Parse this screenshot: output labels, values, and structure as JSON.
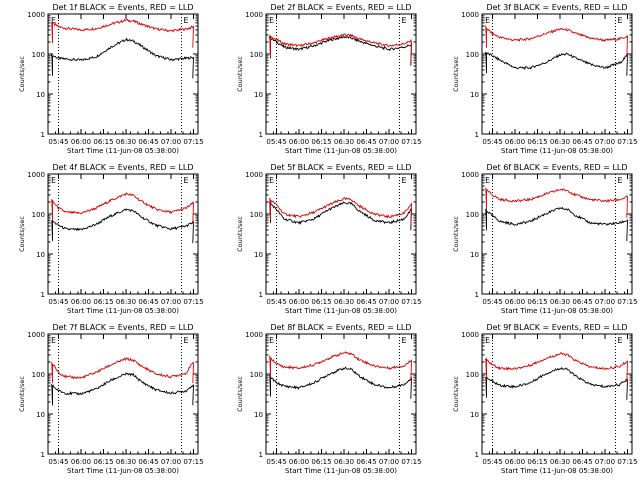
{
  "colors": {
    "events": "#000000",
    "lld": "#dd0000",
    "axis": "#000000",
    "background": "#ffffff"
  },
  "chart_data": [
    {
      "type": "line",
      "title": "Det 1f BLACK = Events, RED = LLD",
      "xlabel": "Start Time (11-Jun-08 05:38:00)",
      "ylabel": "Counts/sec",
      "log_y": true,
      "ylim": [
        1,
        1000
      ],
      "yticks": [
        "1",
        "10",
        "100",
        "1000"
      ],
      "xticks": [
        "05:45",
        "06:00",
        "06:15",
        "06:30",
        "06:45",
        "07:00",
        "07:15"
      ],
      "xlim": [
        "05:38",
        "07:18"
      ],
      "dotted_lines": [
        "05:45",
        "07:07"
      ],
      "markers": [
        "E",
        "E"
      ],
      "x": [
        "05:40",
        "05:45",
        "05:50",
        "06:00",
        "06:10",
        "06:20",
        "06:30",
        "06:35",
        "06:40",
        "06:50",
        "07:00",
        "07:10",
        "07:15"
      ],
      "series": [
        {
          "name": "Events",
          "values": [
            95,
            78,
            75,
            70,
            85,
            150,
            230,
            210,
            160,
            90,
            72,
            78,
            82
          ]
        },
        {
          "name": "LLD",
          "values": [
            620,
            480,
            440,
            400,
            430,
            560,
            700,
            660,
            560,
            420,
            380,
            420,
            480
          ]
        }
      ]
    },
    {
      "type": "line",
      "title": "Det 2f BLACK = Events, RED = LLD",
      "xlabel": "Start Time (11-Jun-08 05:38:00)",
      "ylabel": "Counts/sec",
      "log_y": true,
      "ylim": [
        1,
        1000
      ],
      "yticks": [
        "1",
        "10",
        "100",
        "1000"
      ],
      "xticks": [
        "05:45",
        "06:00",
        "06:15",
        "06:30",
        "06:45",
        "07:00",
        "07:15"
      ],
      "xlim": [
        "05:38",
        "07:18"
      ],
      "dotted_lines": [
        "05:45",
        "07:07"
      ],
      "markers": [
        "E",
        "E"
      ],
      "x": [
        "05:40",
        "05:45",
        "05:50",
        "06:00",
        "06:10",
        "06:20",
        "06:30",
        "06:35",
        "06:40",
        "06:50",
        "07:00",
        "07:10",
        "07:15"
      ],
      "series": [
        {
          "name": "Events",
          "values": [
            260,
            200,
            150,
            130,
            160,
            220,
            270,
            250,
            210,
            160,
            130,
            150,
            170
          ]
        },
        {
          "name": "LLD",
          "values": [
            280,
            230,
            180,
            160,
            190,
            250,
            300,
            290,
            240,
            190,
            160,
            180,
            210
          ]
        }
      ]
    },
    {
      "type": "line",
      "title": "Det 3f BLACK = Events, RED = LLD",
      "xlabel": "Start Time (11-Jun-08 05:38:00)",
      "ylabel": "Counts/sec",
      "log_y": true,
      "ylim": [
        1,
        1000
      ],
      "yticks": [
        "1",
        "10",
        "100",
        "1000"
      ],
      "xticks": [
        "05:45",
        "06:00",
        "06:15",
        "06:30",
        "06:45",
        "07:00",
        "07:15"
      ],
      "xlim": [
        "05:38",
        "07:18"
      ],
      "dotted_lines": [
        "05:45",
        "07:07"
      ],
      "markers": [
        "E",
        "E"
      ],
      "x": [
        "05:40",
        "05:45",
        "05:50",
        "06:00",
        "06:10",
        "06:20",
        "06:30",
        "06:35",
        "06:40",
        "06:50",
        "07:00",
        "07:10",
        "07:15"
      ],
      "series": [
        {
          "name": "Events",
          "values": [
            110,
            90,
            70,
            45,
            45,
            60,
            95,
            100,
            80,
            55,
            45,
            60,
            95
          ]
        },
        {
          "name": "LLD",
          "values": [
            480,
            320,
            260,
            220,
            240,
            320,
            420,
            400,
            330,
            250,
            220,
            240,
            280
          ]
        }
      ]
    },
    {
      "type": "line",
      "title": "Det 4f BLACK = Events, RED = LLD",
      "xlabel": "Start Time (11-Jun-08 05:38:00)",
      "ylabel": "Counts/sec",
      "log_y": true,
      "ylim": [
        1,
        1000
      ],
      "yticks": [
        "1",
        "10",
        "100",
        "1000"
      ],
      "xticks": [
        "05:45",
        "06:00",
        "06:15",
        "06:30",
        "06:45",
        "07:00",
        "07:15"
      ],
      "xlim": [
        "05:38",
        "07:18"
      ],
      "dotted_lines": [
        "05:45",
        "07:07"
      ],
      "markers": [
        "E",
        "E"
      ],
      "x": [
        "05:40",
        "05:45",
        "05:50",
        "06:00",
        "06:10",
        "06:20",
        "06:30",
        "06:35",
        "06:40",
        "06:50",
        "07:00",
        "07:10",
        "07:15"
      ],
      "series": [
        {
          "name": "Events",
          "values": [
            70,
            52,
            42,
            40,
            55,
            90,
            130,
            120,
            85,
            52,
            42,
            50,
            62
          ]
        },
        {
          "name": "LLD",
          "values": [
            230,
            140,
            110,
            105,
            140,
            220,
            320,
            290,
            210,
            130,
            110,
            140,
            190
          ]
        }
      ]
    },
    {
      "type": "line",
      "title": "Det 5f BLACK = Events, RED = LLD",
      "xlabel": "Start Time (11-Jun-08 05:38:00)",
      "ylabel": "Counts/sec",
      "log_y": true,
      "ylim": [
        1,
        1000
      ],
      "yticks": [
        "1",
        "10",
        "100",
        "1000"
      ],
      "xticks": [
        "05:45",
        "06:00",
        "06:15",
        "06:30",
        "06:45",
        "07:00",
        "07:15"
      ],
      "xlim": [
        "05:38",
        "07:18"
      ],
      "dotted_lines": [
        "05:45",
        "07:07"
      ],
      "markers": [
        "E",
        "E"
      ],
      "x": [
        "05:40",
        "05:45",
        "05:50",
        "06:00",
        "06:10",
        "06:20",
        "06:30",
        "06:35",
        "06:40",
        "06:50",
        "07:00",
        "07:10",
        "07:15"
      ],
      "series": [
        {
          "name": "Events",
          "values": [
            200,
            130,
            75,
            60,
            75,
            130,
            190,
            180,
            120,
            70,
            60,
            75,
            130
          ]
        },
        {
          "name": "LLD",
          "values": [
            240,
            170,
            100,
            85,
            110,
            170,
            240,
            230,
            160,
            100,
            85,
            105,
            170
          ]
        }
      ]
    },
    {
      "type": "line",
      "title": "Det 6f BLACK = Events, RED = LLD",
      "xlabel": "Start Time (11-Jun-08 05:38:00)",
      "ylabel": "Counts/sec",
      "log_y": true,
      "ylim": [
        1,
        1000
      ],
      "yticks": [
        "1",
        "10",
        "100",
        "1000"
      ],
      "xticks": [
        "05:45",
        "06:00",
        "06:15",
        "06:30",
        "06:45",
        "07:00",
        "07:15"
      ],
      "xlim": [
        "05:38",
        "07:18"
      ],
      "dotted_lines": [
        "05:45",
        "07:07"
      ],
      "markers": [
        "E",
        "E"
      ],
      "x": [
        "05:40",
        "05:45",
        "05:50",
        "06:00",
        "06:10",
        "06:20",
        "06:30",
        "06:35",
        "06:40",
        "06:50",
        "07:00",
        "07:10",
        "07:15"
      ],
      "series": [
        {
          "name": "Events",
          "values": [
            130,
            90,
            65,
            55,
            65,
            100,
            140,
            130,
            95,
            60,
            55,
            60,
            70
          ]
        },
        {
          "name": "LLD",
          "values": [
            420,
            300,
            230,
            210,
            230,
            310,
            410,
            390,
            300,
            230,
            210,
            230,
            270
          ]
        }
      ]
    },
    {
      "type": "line",
      "title": "Det 7f BLACK = Events, RED = LLD",
      "xlabel": "Start Time (11-Jun-08 05:38:00)",
      "ylabel": "Counts/sec",
      "log_y": true,
      "ylim": [
        1,
        1000
      ],
      "yticks": [
        "1",
        "10",
        "100",
        "1000"
      ],
      "xticks": [
        "05:45",
        "06:00",
        "06:15",
        "06:30",
        "06:45",
        "07:00",
        "07:15"
      ],
      "xlim": [
        "05:38",
        "07:18"
      ],
      "dotted_lines": [
        "05:45",
        "07:07"
      ],
      "markers": [
        "E",
        "E"
      ],
      "x": [
        "05:40",
        "05:45",
        "05:50",
        "06:00",
        "06:10",
        "06:20",
        "06:30",
        "06:35",
        "06:40",
        "06:50",
        "07:00",
        "07:10",
        "07:15"
      ],
      "series": [
        {
          "name": "Events",
          "values": [
            55,
            38,
            33,
            32,
            42,
            70,
            100,
            95,
            65,
            40,
            33,
            38,
            55
          ]
        },
        {
          "name": "LLD",
          "values": [
            200,
            110,
            85,
            80,
            110,
            170,
            240,
            220,
            160,
            100,
            85,
            105,
            200
          ]
        }
      ]
    },
    {
      "type": "line",
      "title": "Det 8f BLACK = Events, RED = LLD",
      "xlabel": "Start Time (11-Jun-08 05:38:00)",
      "ylabel": "Counts/sec",
      "log_y": true,
      "ylim": [
        1,
        1000
      ],
      "yticks": [
        "1",
        "10",
        "100",
        "1000"
      ],
      "xticks": [
        "05:45",
        "06:00",
        "06:15",
        "06:30",
        "06:45",
        "07:00",
        "07:15"
      ],
      "xlim": [
        "05:38",
        "07:18"
      ],
      "dotted_lines": [
        "05:45",
        "07:07"
      ],
      "markers": [
        "E",
        "E"
      ],
      "x": [
        "05:40",
        "05:45",
        "05:50",
        "06:00",
        "06:10",
        "06:20",
        "06:30",
        "06:35",
        "06:40",
        "06:50",
        "07:00",
        "07:10",
        "07:15"
      ],
      "series": [
        {
          "name": "Events",
          "values": [
            90,
            60,
            50,
            45,
            60,
            100,
            140,
            130,
            90,
            55,
            45,
            55,
            80
          ]
        },
        {
          "name": "LLD",
          "values": [
            270,
            180,
            150,
            140,
            170,
            250,
            340,
            320,
            230,
            160,
            140,
            160,
            220
          ]
        }
      ]
    },
    {
      "type": "line",
      "title": "Det 9f BLACK = Events, RED = LLD",
      "xlabel": "Start Time (11-Jun-08 05:38:00)",
      "ylabel": "Counts/sec",
      "log_y": true,
      "ylim": [
        1,
        1000
      ],
      "yticks": [
        "1",
        "10",
        "100",
        "1000"
      ],
      "xticks": [
        "05:45",
        "06:00",
        "06:15",
        "06:30",
        "06:45",
        "07:00",
        "07:15"
      ],
      "xlim": [
        "05:38",
        "07:18"
      ],
      "dotted_lines": [
        "05:45",
        "07:07"
      ],
      "markers": [
        "E",
        "E"
      ],
      "x": [
        "05:40",
        "05:45",
        "05:50",
        "06:00",
        "06:10",
        "06:20",
        "06:30",
        "06:35",
        "06:40",
        "06:50",
        "07:00",
        "07:10",
        "07:15"
      ],
      "series": [
        {
          "name": "Events",
          "values": [
            85,
            65,
            52,
            48,
            60,
            100,
            140,
            130,
            90,
            55,
            48,
            55,
            75
          ]
        },
        {
          "name": "LLD",
          "values": [
            240,
            170,
            140,
            135,
            165,
            240,
            320,
            300,
            220,
            150,
            135,
            155,
            210
          ]
        }
      ]
    }
  ]
}
